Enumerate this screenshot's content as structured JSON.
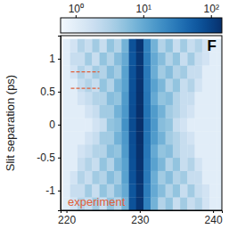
{
  "chart_data": {
    "type": "heatmap",
    "ylabel": "Slit separation (ps)",
    "annotations": [
      {
        "text": "F",
        "color": "#000000"
      },
      {
        "text": "experiment",
        "color": "#e0603a"
      }
    ],
    "hlines": [
      {
        "y": 0.8,
        "x": [
          220.6,
          224.5
        ],
        "color": "#e0603a",
        "line_style": "dashed"
      },
      {
        "y": 0.55,
        "x": [
          220.6,
          224.5
        ],
        "color": "#e0603a",
        "line_style": "dashed"
      }
    ],
    "xlim": [
      219.2,
      241.2
    ],
    "xticks": [
      220,
      230,
      240
    ],
    "ylim": [
      -1.3,
      1.35
    ],
    "yticks": [
      -1,
      -0.5,
      0,
      0.5,
      1
    ],
    "x": [
      220,
      221,
      222,
      223,
      224,
      225,
      226,
      227,
      228,
      229,
      230,
      231,
      232,
      233,
      234,
      235,
      236,
      237,
      238,
      239,
      240,
      241
    ],
    "y": [
      -1.2,
      -1.0,
      -0.8,
      -0.6,
      -0.4,
      -0.2,
      0,
      0.2,
      0.4,
      0.6,
      0.8,
      1.0,
      1.2
    ],
    "z": [
      [
        1,
        1.5,
        3,
        2,
        4,
        2,
        5,
        3,
        8,
        70,
        130,
        25,
        8,
        3,
        5,
        2,
        4,
        2,
        3,
        1.5,
        1,
        1
      ],
      [
        1,
        2,
        2,
        4,
        2,
        5,
        3,
        6,
        10,
        65,
        125,
        28,
        10,
        6,
        3,
        5,
        2,
        4,
        2,
        1.5,
        1,
        1
      ],
      [
        1,
        1.5,
        3,
        2,
        4,
        3,
        6,
        4,
        12,
        70,
        130,
        30,
        9,
        4,
        6,
        3,
        4,
        2,
        2,
        1,
        1,
        1
      ],
      [
        1,
        1,
        2,
        3,
        2,
        5,
        3,
        7,
        12,
        72,
        135,
        30,
        12,
        7,
        3,
        5,
        2,
        3,
        1.5,
        1,
        1,
        1
      ],
      [
        1,
        1,
        1.5,
        2,
        3,
        3,
        6,
        5,
        14,
        75,
        140,
        32,
        10,
        5,
        6,
        3,
        2,
        2,
        1,
        1,
        1,
        1
      ],
      [
        1,
        1,
        1,
        1.5,
        2,
        4,
        4,
        8,
        15,
        78,
        145,
        34,
        14,
        8,
        4,
        3,
        2,
        1.5,
        1,
        1,
        1,
        1
      ],
      [
        1,
        1,
        1,
        1,
        1.5,
        2,
        5,
        6,
        18,
        80,
        150,
        35,
        15,
        6,
        5,
        2,
        1.5,
        1,
        1,
        1,
        1,
        1
      ],
      [
        1,
        1,
        1,
        1.5,
        2,
        4,
        4,
        8,
        15,
        78,
        145,
        34,
        14,
        8,
        4,
        3,
        2,
        1.5,
        1,
        1,
        1,
        1
      ],
      [
        1,
        1,
        1.5,
        2,
        3,
        3,
        6,
        5,
        14,
        75,
        140,
        32,
        10,
        5,
        6,
        3,
        2,
        2,
        1,
        1,
        1,
        1
      ],
      [
        1,
        1,
        2,
        3,
        2,
        5,
        3,
        7,
        12,
        72,
        135,
        30,
        12,
        7,
        3,
        5,
        2,
        3,
        1.5,
        1,
        1,
        1
      ],
      [
        1,
        1.5,
        3,
        2,
        4,
        3,
        6,
        4,
        12,
        70,
        130,
        30,
        9,
        4,
        6,
        3,
        4,
        2,
        2,
        1,
        1,
        1
      ],
      [
        1,
        2,
        2,
        4,
        2,
        5,
        3,
        6,
        10,
        65,
        125,
        28,
        10,
        6,
        3,
        5,
        2,
        4,
        2,
        1.5,
        1,
        1
      ],
      [
        1,
        1.5,
        3,
        2,
        4,
        2,
        5,
        3,
        8,
        70,
        130,
        25,
        8,
        3,
        5,
        2,
        4,
        2,
        3,
        1.5,
        1,
        1
      ]
    ],
    "colorbar": {
      "log": true,
      "range": [
        0.6,
        145
      ],
      "ticks": [
        {
          "value": 1,
          "label": "10⁰"
        },
        {
          "value": 10,
          "label": "10¹"
        },
        {
          "value": 100,
          "label": "10²"
        }
      ]
    }
  }
}
